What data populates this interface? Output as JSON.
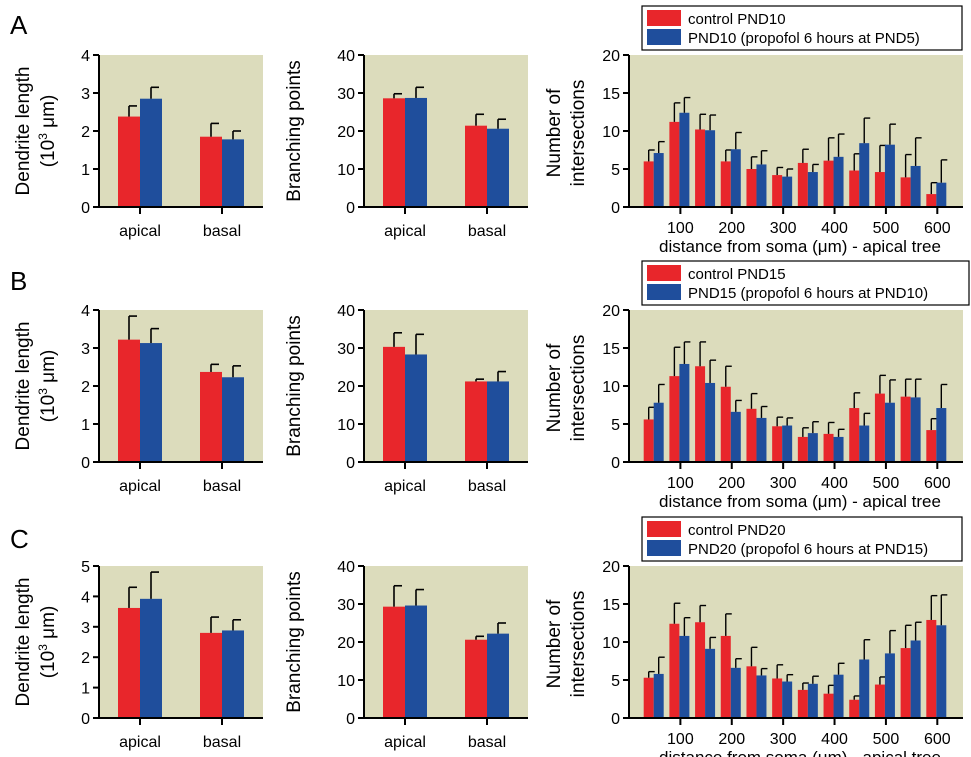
{
  "colors": {
    "control": "#e8262b",
    "propofol": "#1f4e9c",
    "plot_bg": "#dcdcbc",
    "axis": "#000000"
  },
  "chart_data": [
    {
      "panel": "A",
      "id": "A-length",
      "type": "bar",
      "categories": [
        "apical",
        "basal"
      ],
      "series": [
        {
          "values": [
            2.38,
            1.85
          ],
          "errors": [
            0.28,
            0.35
          ]
        },
        {
          "values": [
            2.85,
            1.78
          ],
          "errors": [
            0.3,
            0.22
          ]
        }
      ],
      "ylabel_line1": "Dendrite length",
      "ylabel_line2": "(10",
      "ylabel_exp": "3",
      "ylabel_unit": " μm)",
      "ylim": [
        0,
        4
      ],
      "yticks": [
        "0",
        "1",
        "2",
        "3",
        "4"
      ],
      "grid": false
    },
    {
      "panel": "A",
      "id": "A-branch",
      "type": "bar",
      "categories": [
        "apical",
        "basal"
      ],
      "series": [
        {
          "values": [
            28.6,
            21.4
          ],
          "errors": [
            1.2,
            3.0
          ]
        },
        {
          "values": [
            28.7,
            20.6
          ],
          "errors": [
            2.8,
            2.5
          ]
        }
      ],
      "ylabel": "Branching points",
      "ylim": [
        0,
        40
      ],
      "yticks": [
        "0",
        "10",
        "20",
        "30",
        "40"
      ],
      "grid": false
    },
    {
      "panel": "A",
      "id": "A-sholl",
      "type": "bar",
      "x": [
        50,
        100,
        150,
        200,
        250,
        300,
        350,
        400,
        450,
        500,
        550,
        600
      ],
      "xticks": [
        "100",
        "200",
        "300",
        "400",
        "500",
        "600"
      ],
      "series": [
        {
          "name": "control PND10",
          "values": [
            6.0,
            11.2,
            10.2,
            6.0,
            5.0,
            4.2,
            5.8,
            6.1,
            4.8,
            4.6,
            3.9,
            1.7
          ],
          "errors": [
            1.5,
            2.5,
            2.0,
            1.5,
            1.6,
            1.0,
            1.8,
            3.0,
            2.2,
            3.5,
            3.0,
            1.5
          ]
        },
        {
          "name": "PND10 (propofol 6 hours at PND5)",
          "values": [
            7.1,
            12.4,
            10.1,
            7.6,
            5.6,
            4.0,
            4.6,
            6.6,
            8.4,
            8.2,
            5.4,
            3.2
          ],
          "errors": [
            1.5,
            2.0,
            2.0,
            2.2,
            1.8,
            1.0,
            1.0,
            3.0,
            3.3,
            2.7,
            3.7,
            3.0
          ]
        }
      ],
      "ylabel_line1": "Number of",
      "ylabel_line2": "intersections",
      "xlabel_a": "distance from soma (",
      "xlabel_mu": "μ",
      "xlabel_b": "m) - apical tree",
      "ylim": [
        0,
        20
      ],
      "yticks": [
        "0",
        "5",
        "10",
        "15",
        "20"
      ],
      "xlim": [
        0,
        650
      ],
      "grid": false,
      "legend": "top"
    },
    {
      "panel": "B",
      "id": "B-length",
      "type": "bar",
      "categories": [
        "apical",
        "basal"
      ],
      "series": [
        {
          "values": [
            3.22,
            2.37
          ],
          "errors": [
            0.62,
            0.2
          ]
        },
        {
          "values": [
            3.13,
            2.23
          ],
          "errors": [
            0.38,
            0.3
          ]
        }
      ],
      "ylabel_line1": "Dendrite length",
      "ylabel_line2": "(10",
      "ylabel_exp": "3",
      "ylabel_unit": " μm)",
      "ylim": [
        0,
        4
      ],
      "yticks": [
        "0",
        "1",
        "2",
        "3",
        "4"
      ],
      "grid": false
    },
    {
      "panel": "B",
      "id": "B-branch",
      "type": "bar",
      "categories": [
        "apical",
        "basal"
      ],
      "series": [
        {
          "values": [
            30.3,
            21.2
          ],
          "errors": [
            3.7,
            0.6
          ]
        },
        {
          "values": [
            28.3,
            21.2
          ],
          "errors": [
            5.3,
            2.6
          ]
        }
      ],
      "ylabel": "Branching points",
      "ylim": [
        0,
        40
      ],
      "yticks": [
        "0",
        "10",
        "20",
        "30",
        "40"
      ],
      "grid": false
    },
    {
      "panel": "B",
      "id": "B-sholl",
      "type": "bar",
      "x": [
        50,
        100,
        150,
        200,
        250,
        300,
        350,
        400,
        450,
        500,
        550,
        600
      ],
      "xticks": [
        "100",
        "200",
        "300",
        "400",
        "500",
        "600"
      ],
      "series": [
        {
          "name": "control PND15",
          "values": [
            5.6,
            11.3,
            12.6,
            9.9,
            7.0,
            4.7,
            3.3,
            3.7,
            7.1,
            9.0,
            8.6,
            4.2
          ],
          "errors": [
            1.6,
            3.8,
            3.2,
            2.7,
            2.0,
            1.2,
            1.2,
            1.5,
            2.0,
            2.4,
            2.3,
            1.5
          ]
        },
        {
          "name": "PND15 (propofol 6 hours at PND10)",
          "values": [
            7.8,
            12.9,
            10.4,
            6.6,
            5.8,
            4.8,
            3.8,
            3.3,
            4.8,
            7.8,
            8.5,
            7.1
          ],
          "errors": [
            2.4,
            2.9,
            3.0,
            1.5,
            1.5,
            1.0,
            1.5,
            1.0,
            1.6,
            3.0,
            2.4,
            3.1
          ]
        }
      ],
      "ylabel_line1": "Number of",
      "ylabel_line2": "intersections",
      "xlabel_a": "distance from soma (",
      "xlabel_mu": "μ",
      "xlabel_b": "m) - apical tree",
      "ylim": [
        0,
        20
      ],
      "yticks": [
        "0",
        "5",
        "10",
        "15",
        "20"
      ],
      "xlim": [
        0,
        650
      ],
      "grid": false,
      "legend": "top"
    },
    {
      "panel": "C",
      "id": "C-length",
      "type": "bar",
      "categories": [
        "apical",
        "basal"
      ],
      "series": [
        {
          "values": [
            3.62,
            2.8
          ],
          "errors": [
            0.68,
            0.52
          ]
        },
        {
          "values": [
            3.92,
            2.88
          ],
          "errors": [
            0.88,
            0.35
          ]
        }
      ],
      "ylabel_line1": "Dendrite length",
      "ylabel_line2": "(10",
      "ylabel_exp": "3",
      "ylabel_unit": " μm)",
      "ylim": [
        0,
        5
      ],
      "yticks": [
        "0",
        "1",
        "2",
        "3",
        "4",
        "5"
      ],
      "grid": false
    },
    {
      "panel": "C",
      "id": "C-branch",
      "type": "bar",
      "categories": [
        "apical",
        "basal"
      ],
      "series": [
        {
          "values": [
            29.3,
            20.6
          ],
          "errors": [
            5.5,
            0.9
          ]
        },
        {
          "values": [
            29.6,
            22.2
          ],
          "errors": [
            4.2,
            2.8
          ]
        }
      ],
      "ylabel": "Branching points",
      "ylim": [
        0,
        40
      ],
      "yticks": [
        "0",
        "10",
        "20",
        "30",
        "40"
      ],
      "grid": false
    },
    {
      "panel": "C",
      "id": "C-sholl",
      "type": "bar",
      "x": [
        50,
        100,
        150,
        200,
        250,
        300,
        350,
        400,
        450,
        500,
        550,
        600
      ],
      "xticks": [
        "100",
        "200",
        "300",
        "400",
        "500",
        "600"
      ],
      "series": [
        {
          "name": "control PND20",
          "values": [
            5.3,
            12.4,
            12.6,
            10.8,
            6.8,
            5.2,
            3.7,
            3.2,
            2.4,
            4.4,
            9.2,
            12.9
          ],
          "errors": [
            0.8,
            2.7,
            2.2,
            2.9,
            2.5,
            1.8,
            0.9,
            1.1,
            0.5,
            1.0,
            3.0,
            3.2
          ]
        },
        {
          "name": "PND20 (propofol 6 hours at PND15)",
          "values": [
            5.8,
            10.8,
            9.1,
            6.6,
            5.6,
            4.8,
            4.5,
            5.7,
            7.7,
            8.5,
            10.2,
            12.2
          ],
          "errors": [
            2.2,
            2.4,
            1.5,
            1.2,
            0.9,
            0.9,
            1.0,
            1.5,
            2.6,
            3.0,
            2.4,
            4.0
          ]
        }
      ],
      "ylabel_line1": "Number of",
      "ylabel_line2": "intersections",
      "xlabel_a": "distance from soma (",
      "xlabel_mu": "μ",
      "xlabel_b": "m) - apical tree",
      "ylim": [
        0,
        20
      ],
      "yticks": [
        "0",
        "5",
        "10",
        "15",
        "20"
      ],
      "xlim": [
        0,
        650
      ],
      "grid": false,
      "legend": "top"
    }
  ],
  "panel_labels": [
    "A",
    "B",
    "C"
  ]
}
